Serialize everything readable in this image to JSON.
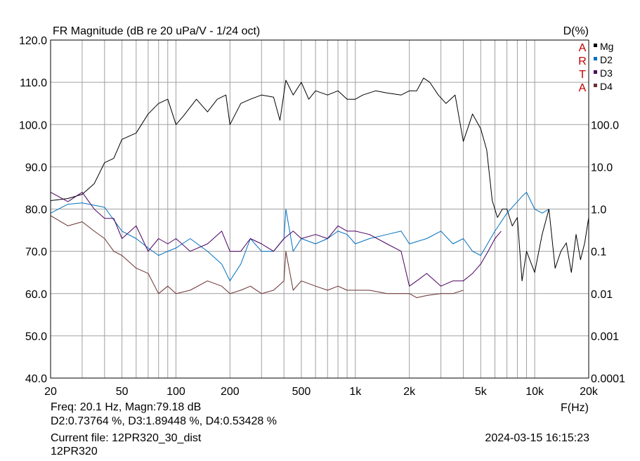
{
  "chart_data": {
    "type": "line",
    "title": "FR Magnitude (dB re 20 uPa/V - 1/24 oct)",
    "right_axis_title": "D(%)",
    "xlabel": "F(Hz)",
    "x_scale": "log",
    "xlim": [
      20,
      20000
    ],
    "x_ticks": [
      20,
      50,
      100,
      200,
      500,
      1000,
      2000,
      5000,
      10000,
      20000
    ],
    "x_tick_labels": [
      "20",
      "50",
      "100",
      "200",
      "500",
      "1k",
      "2k",
      "5k",
      "10k",
      "20k"
    ],
    "ylim": [
      40,
      120
    ],
    "y_ticks": [
      40,
      50,
      60,
      70,
      80,
      90,
      100,
      110,
      120
    ],
    "y_tick_labels": [
      "40.0",
      "50.0",
      "60.0",
      "70.0",
      "80.0",
      "90.0",
      "100.0",
      "110.0",
      "120.0"
    ],
    "y2_scale": "log",
    "y2_ticks": [
      0.0001,
      0.001,
      0.01,
      0.1,
      1,
      10,
      100
    ],
    "y2_tick_labels": [
      "0.0001",
      "0.001",
      "0.01",
      "0.1",
      "1.0",
      "10.0",
      "100.0"
    ],
    "grid": true,
    "legend_position": "top-right",
    "watermark": [
      "A",
      "R",
      "T",
      "A"
    ],
    "series": [
      {
        "name": "Mg",
        "color": "#000000",
        "axis": "left",
        "x": [
          20,
          25,
          30,
          35,
          40,
          45,
          50,
          60,
          70,
          80,
          90,
          100,
          110,
          130,
          150,
          170,
          190,
          200,
          230,
          260,
          300,
          350,
          380,
          410,
          450,
          500,
          550,
          600,
          700,
          800,
          900,
          1000,
          1100,
          1300,
          1500,
          1800,
          2000,
          2200,
          2400,
          2600,
          2900,
          3200,
          3600,
          4000,
          4500,
          5000,
          5400,
          5800,
          6200,
          6600,
          7000,
          7500,
          8000,
          8500,
          9000,
          10000,
          11000,
          12000,
          13000,
          14000,
          15000,
          16000,
          17000,
          18000,
          19000,
          20000
        ],
        "y": [
          82,
          82.5,
          83.5,
          86,
          91,
          92,
          96.5,
          98,
          102.5,
          105,
          106,
          100,
          102,
          106,
          103,
          106,
          107,
          100,
          105,
          106,
          107,
          106.5,
          101,
          110.5,
          107,
          110,
          106,
          108,
          107,
          108,
          106,
          106,
          107,
          108,
          107.5,
          107,
          108,
          108,
          111,
          110,
          107,
          105,
          107,
          96,
          102.5,
          99,
          94,
          82,
          78,
          80,
          80,
          76,
          78,
          63,
          70,
          65,
          74,
          80,
          66,
          70,
          72,
          65,
          74,
          68,
          72,
          78
        ]
      },
      {
        "name": "D2",
        "color": "#0070c0",
        "axis": "right",
        "x": [
          20,
          25,
          30,
          40,
          50,
          60,
          70,
          80,
          90,
          100,
          120,
          150,
          180,
          200,
          230,
          260,
          300,
          350,
          400,
          410,
          450,
          500,
          600,
          700,
          800,
          900,
          1000,
          1200,
          1500,
          1800,
          2000,
          2500,
          3000,
          3500,
          4000,
          4500,
          5000,
          6000,
          7000,
          8000,
          8500,
          9000,
          10000,
          11000,
          12000
        ],
        "y": [
          0.8,
          1.3,
          1.4,
          1.1,
          0.3,
          0.2,
          0.12,
          0.08,
          0.1,
          0.12,
          0.2,
          0.1,
          0.05,
          0.02,
          0.05,
          0.2,
          0.1,
          0.1,
          0.2,
          1.0,
          0.1,
          0.2,
          0.15,
          0.2,
          0.3,
          0.25,
          0.15,
          0.2,
          0.25,
          0.3,
          0.15,
          0.2,
          0.3,
          0.15,
          0.2,
          0.1,
          0.08,
          0.3,
          0.8,
          1.5,
          2.0,
          2.5,
          1.0,
          0.8,
          1.0
        ]
      },
      {
        "name": "D3",
        "color": "#4b0060",
        "axis": "right",
        "x": [
          20,
          25,
          30,
          35,
          40,
          45,
          50,
          60,
          70,
          80,
          90,
          100,
          120,
          150,
          180,
          200,
          230,
          260,
          300,
          350,
          400,
          450,
          500,
          600,
          700,
          800,
          900,
          1000,
          1200,
          1500,
          1800,
          2000,
          2200,
          2500,
          3000,
          3500,
          4000,
          4500,
          5000,
          5500,
          6000,
          6500
        ],
        "y": [
          2.5,
          1.5,
          2.5,
          1.0,
          0.6,
          0.6,
          0.2,
          0.4,
          0.1,
          0.2,
          0.15,
          0.2,
          0.1,
          0.15,
          0.3,
          0.1,
          0.1,
          0.2,
          0.15,
          0.1,
          0.2,
          0.3,
          0.2,
          0.25,
          0.2,
          0.4,
          0.3,
          0.3,
          0.25,
          0.15,
          0.1,
          0.015,
          0.02,
          0.03,
          0.015,
          0.02,
          0.02,
          0.03,
          0.05,
          0.1,
          0.2,
          0.3
        ]
      },
      {
        "name": "D4",
        "color": "#6b3030",
        "axis": "right",
        "x": [
          20,
          25,
          30,
          35,
          40,
          45,
          50,
          60,
          70,
          80,
          90,
          100,
          120,
          150,
          180,
          200,
          230,
          260,
          300,
          350,
          400,
          410,
          450,
          500,
          600,
          700,
          800,
          900,
          1000,
          1200,
          1500,
          1800,
          2000,
          2200,
          2500,
          3000,
          3500,
          4000
        ],
        "y": [
          0.7,
          0.4,
          0.5,
          0.3,
          0.2,
          0.1,
          0.08,
          0.04,
          0.03,
          0.01,
          0.015,
          0.01,
          0.012,
          0.02,
          0.015,
          0.01,
          0.012,
          0.015,
          0.01,
          0.012,
          0.02,
          0.1,
          0.012,
          0.02,
          0.015,
          0.012,
          0.015,
          0.012,
          0.012,
          0.012,
          0.01,
          0.01,
          0.01,
          0.008,
          0.009,
          0.01,
          0.01,
          0.012
        ]
      }
    ]
  },
  "readout": {
    "line1": "Freq: 20.1 Hz, Magn:79.18 dB",
    "line2": "D2:0.73764 %, D3:1.89448 %, D4:0.53428 %"
  },
  "footer": {
    "current_file": "Current file: 12PR320_30_dist",
    "datetime": "2024-03-15   16:15:23",
    "name": "12PR320"
  }
}
